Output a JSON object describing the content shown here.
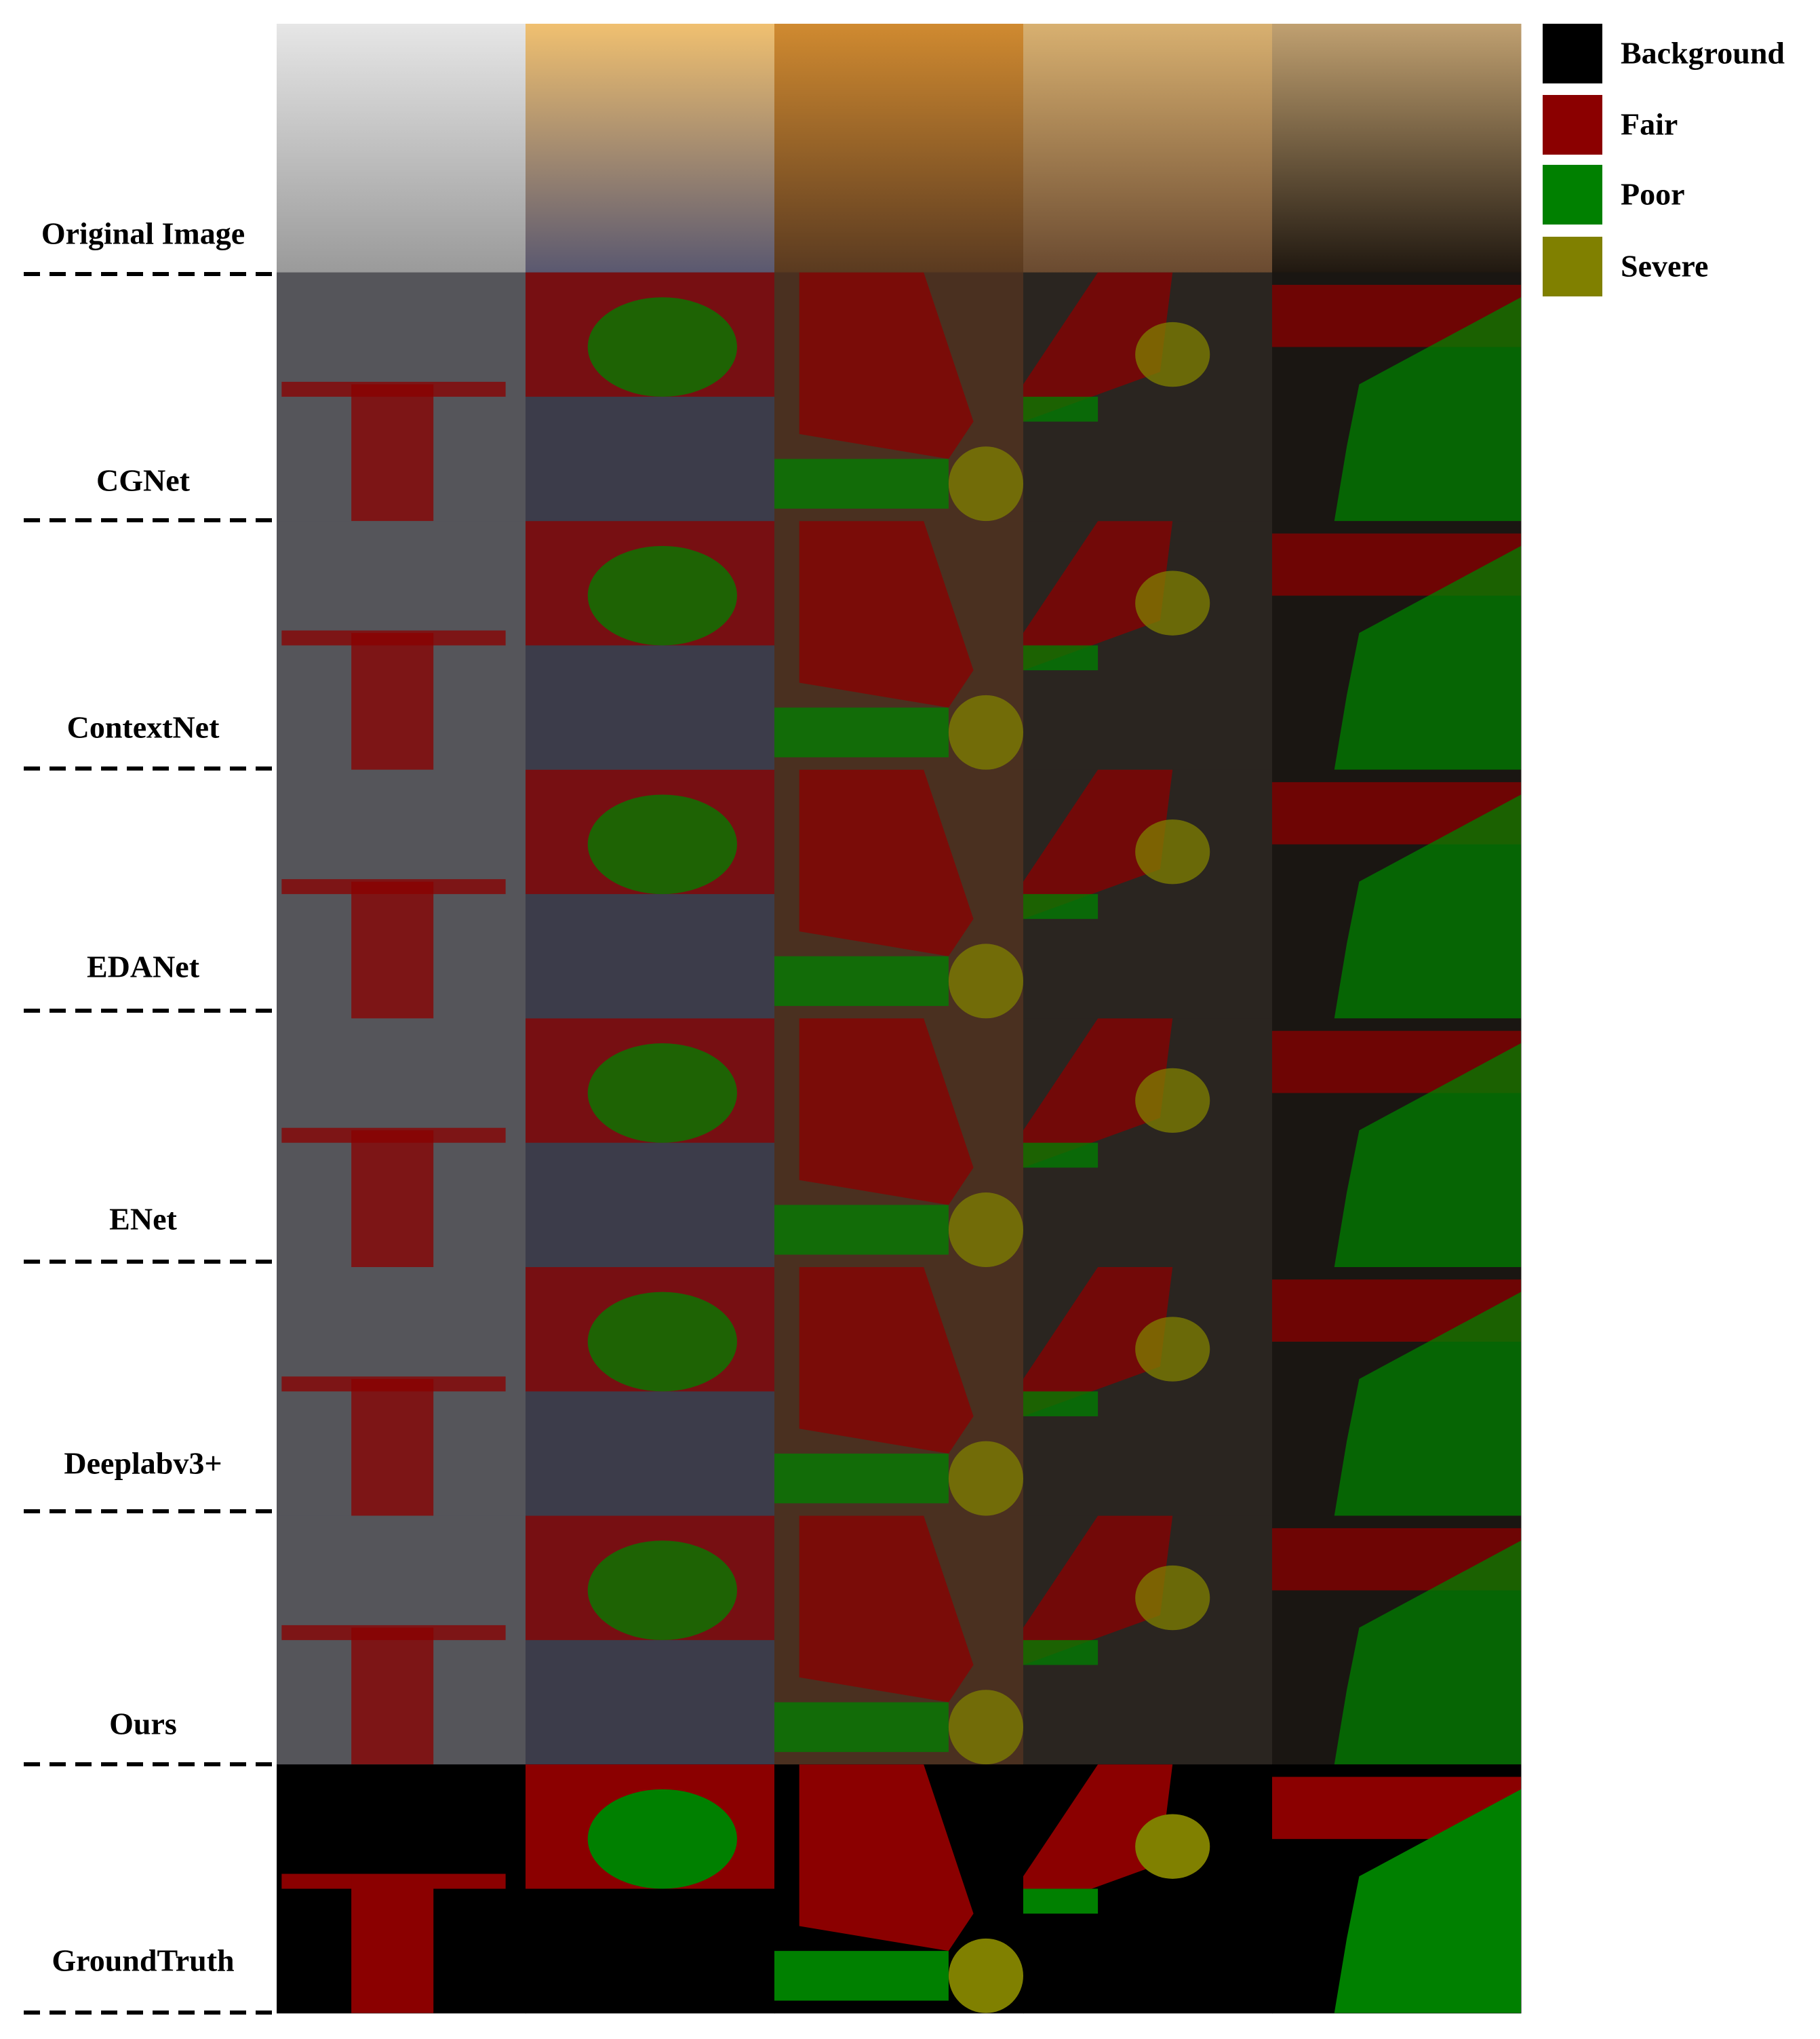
{
  "row_labels": [
    "Original Image",
    "CGNet",
    "ContextNet",
    "EDANet",
    "ENet",
    "Deeplabv3+",
    "Ours",
    "GroundTruth"
  ],
  "legend": [
    {
      "label": "Background",
      "color": "#000000"
    },
    {
      "label": "Fair",
      "color": "#8b0000"
    },
    {
      "label": "Poor",
      "color": "#008000"
    },
    {
      "label": "Severe",
      "color": "#808000"
    }
  ]
}
